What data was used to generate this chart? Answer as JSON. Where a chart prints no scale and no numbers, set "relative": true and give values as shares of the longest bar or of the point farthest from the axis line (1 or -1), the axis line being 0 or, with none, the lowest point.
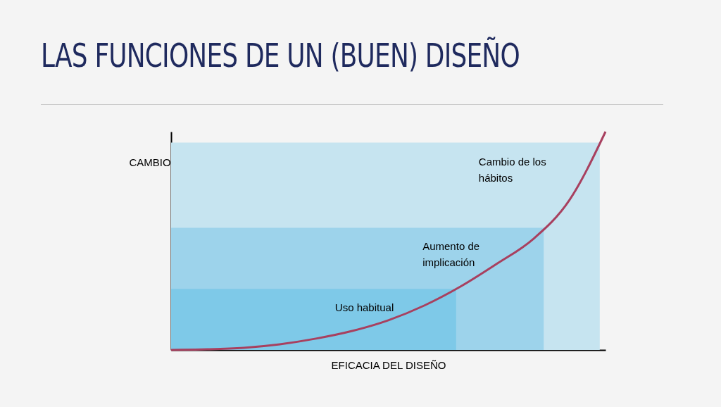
{
  "chart_data": {
    "type": "line",
    "title": "LAS FUNCIONES DE UN (BUEN) DISEÑO",
    "xlabel": "EFICACIA DEL DISEÑO",
    "ylabel": "CAMBIO",
    "relative": true,
    "categories": [
      null,
      null,
      null,
      null,
      null,
      null,
      null,
      null,
      null,
      null,
      null,
      null,
      null
    ],
    "series": [
      {
        "color": "#a8405f",
        "values": [
          0,
          0.003,
          0.01,
          0.026,
          0.052,
          0.087,
          0.136,
          0.204,
          0.291,
          0.395,
          0.508,
          0.686,
          1
        ]
      }
    ],
    "bands": [
      {
        "axis": "y",
        "from": 0,
        "to": 0.95,
        "label": "Cambio de los hábitos",
        "color": "#c6e4f0"
      },
      {
        "axis": "y",
        "from": 0,
        "to": 0.56,
        "label": "Aumento de implicación",
        "color": "#9dd3eb"
      },
      {
        "axis": "y",
        "from": 0,
        "to": 0.28,
        "label": "Uso habitual",
        "color": "#7ec9e8"
      }
    ]
  }
}
